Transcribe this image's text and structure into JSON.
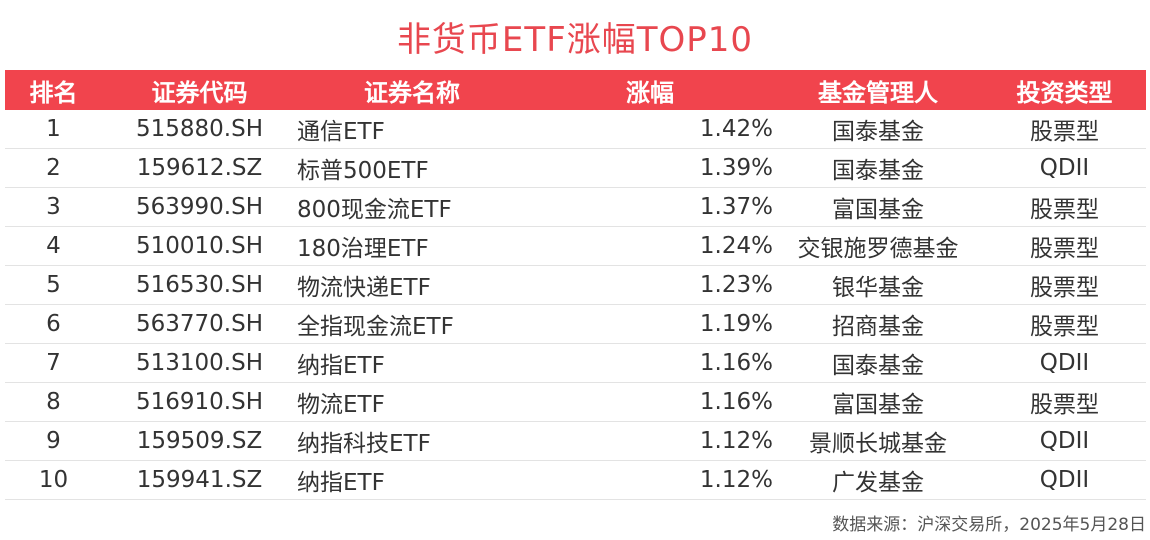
{
  "title": "非货币ETF涨幅TOP10",
  "headers": {
    "rank": "排名",
    "code": "证券代码",
    "name": "证券名称",
    "change": "涨幅",
    "manager": "基金管理人",
    "type": "投资类型"
  },
  "rows": [
    {
      "rank": "1",
      "code": "515880.SH",
      "name": "通信ETF",
      "change": "1.42%",
      "manager": "国泰基金",
      "type": "股票型"
    },
    {
      "rank": "2",
      "code": "159612.SZ",
      "name": "标普500ETF",
      "change": "1.39%",
      "manager": "国泰基金",
      "type": "QDII"
    },
    {
      "rank": "3",
      "code": "563990.SH",
      "name": "800现金流ETF",
      "change": "1.37%",
      "manager": "富国基金",
      "type": "股票型"
    },
    {
      "rank": "4",
      "code": "510010.SH",
      "name": "180治理ETF",
      "change": "1.24%",
      "manager": "交银施罗德基金",
      "type": "股票型"
    },
    {
      "rank": "5",
      "code": "516530.SH",
      "name": "物流快递ETF",
      "change": "1.23%",
      "manager": "银华基金",
      "type": "股票型"
    },
    {
      "rank": "6",
      "code": "563770.SH",
      "name": "全指现金流ETF",
      "change": "1.19%",
      "manager": "招商基金",
      "type": "股票型"
    },
    {
      "rank": "7",
      "code": "513100.SH",
      "name": "纳指ETF",
      "change": "1.16%",
      "manager": "国泰基金",
      "type": "QDII"
    },
    {
      "rank": "8",
      "code": "516910.SH",
      "name": "物流ETF",
      "change": "1.16%",
      "manager": "富国基金",
      "type": "股票型"
    },
    {
      "rank": "9",
      "code": "159509.SZ",
      "name": "纳指科技ETF",
      "change": "1.12%",
      "manager": "景顺长城基金",
      "type": "QDII"
    },
    {
      "rank": "10",
      "code": "159941.SZ",
      "name": "纳指ETF",
      "change": "1.12%",
      "manager": "广发基金",
      "type": "QDII"
    }
  ],
  "source": "数据来源：沪深交易所，2025年5月28日",
  "colors": {
    "accent": "#f1444d",
    "value_text": "#e8474f"
  },
  "chart_data": {
    "type": "table",
    "title": "非货币ETF涨幅TOP10",
    "columns": [
      "排名",
      "证券代码",
      "证券名称",
      "涨幅",
      "基金管理人",
      "投资类型"
    ]
  }
}
